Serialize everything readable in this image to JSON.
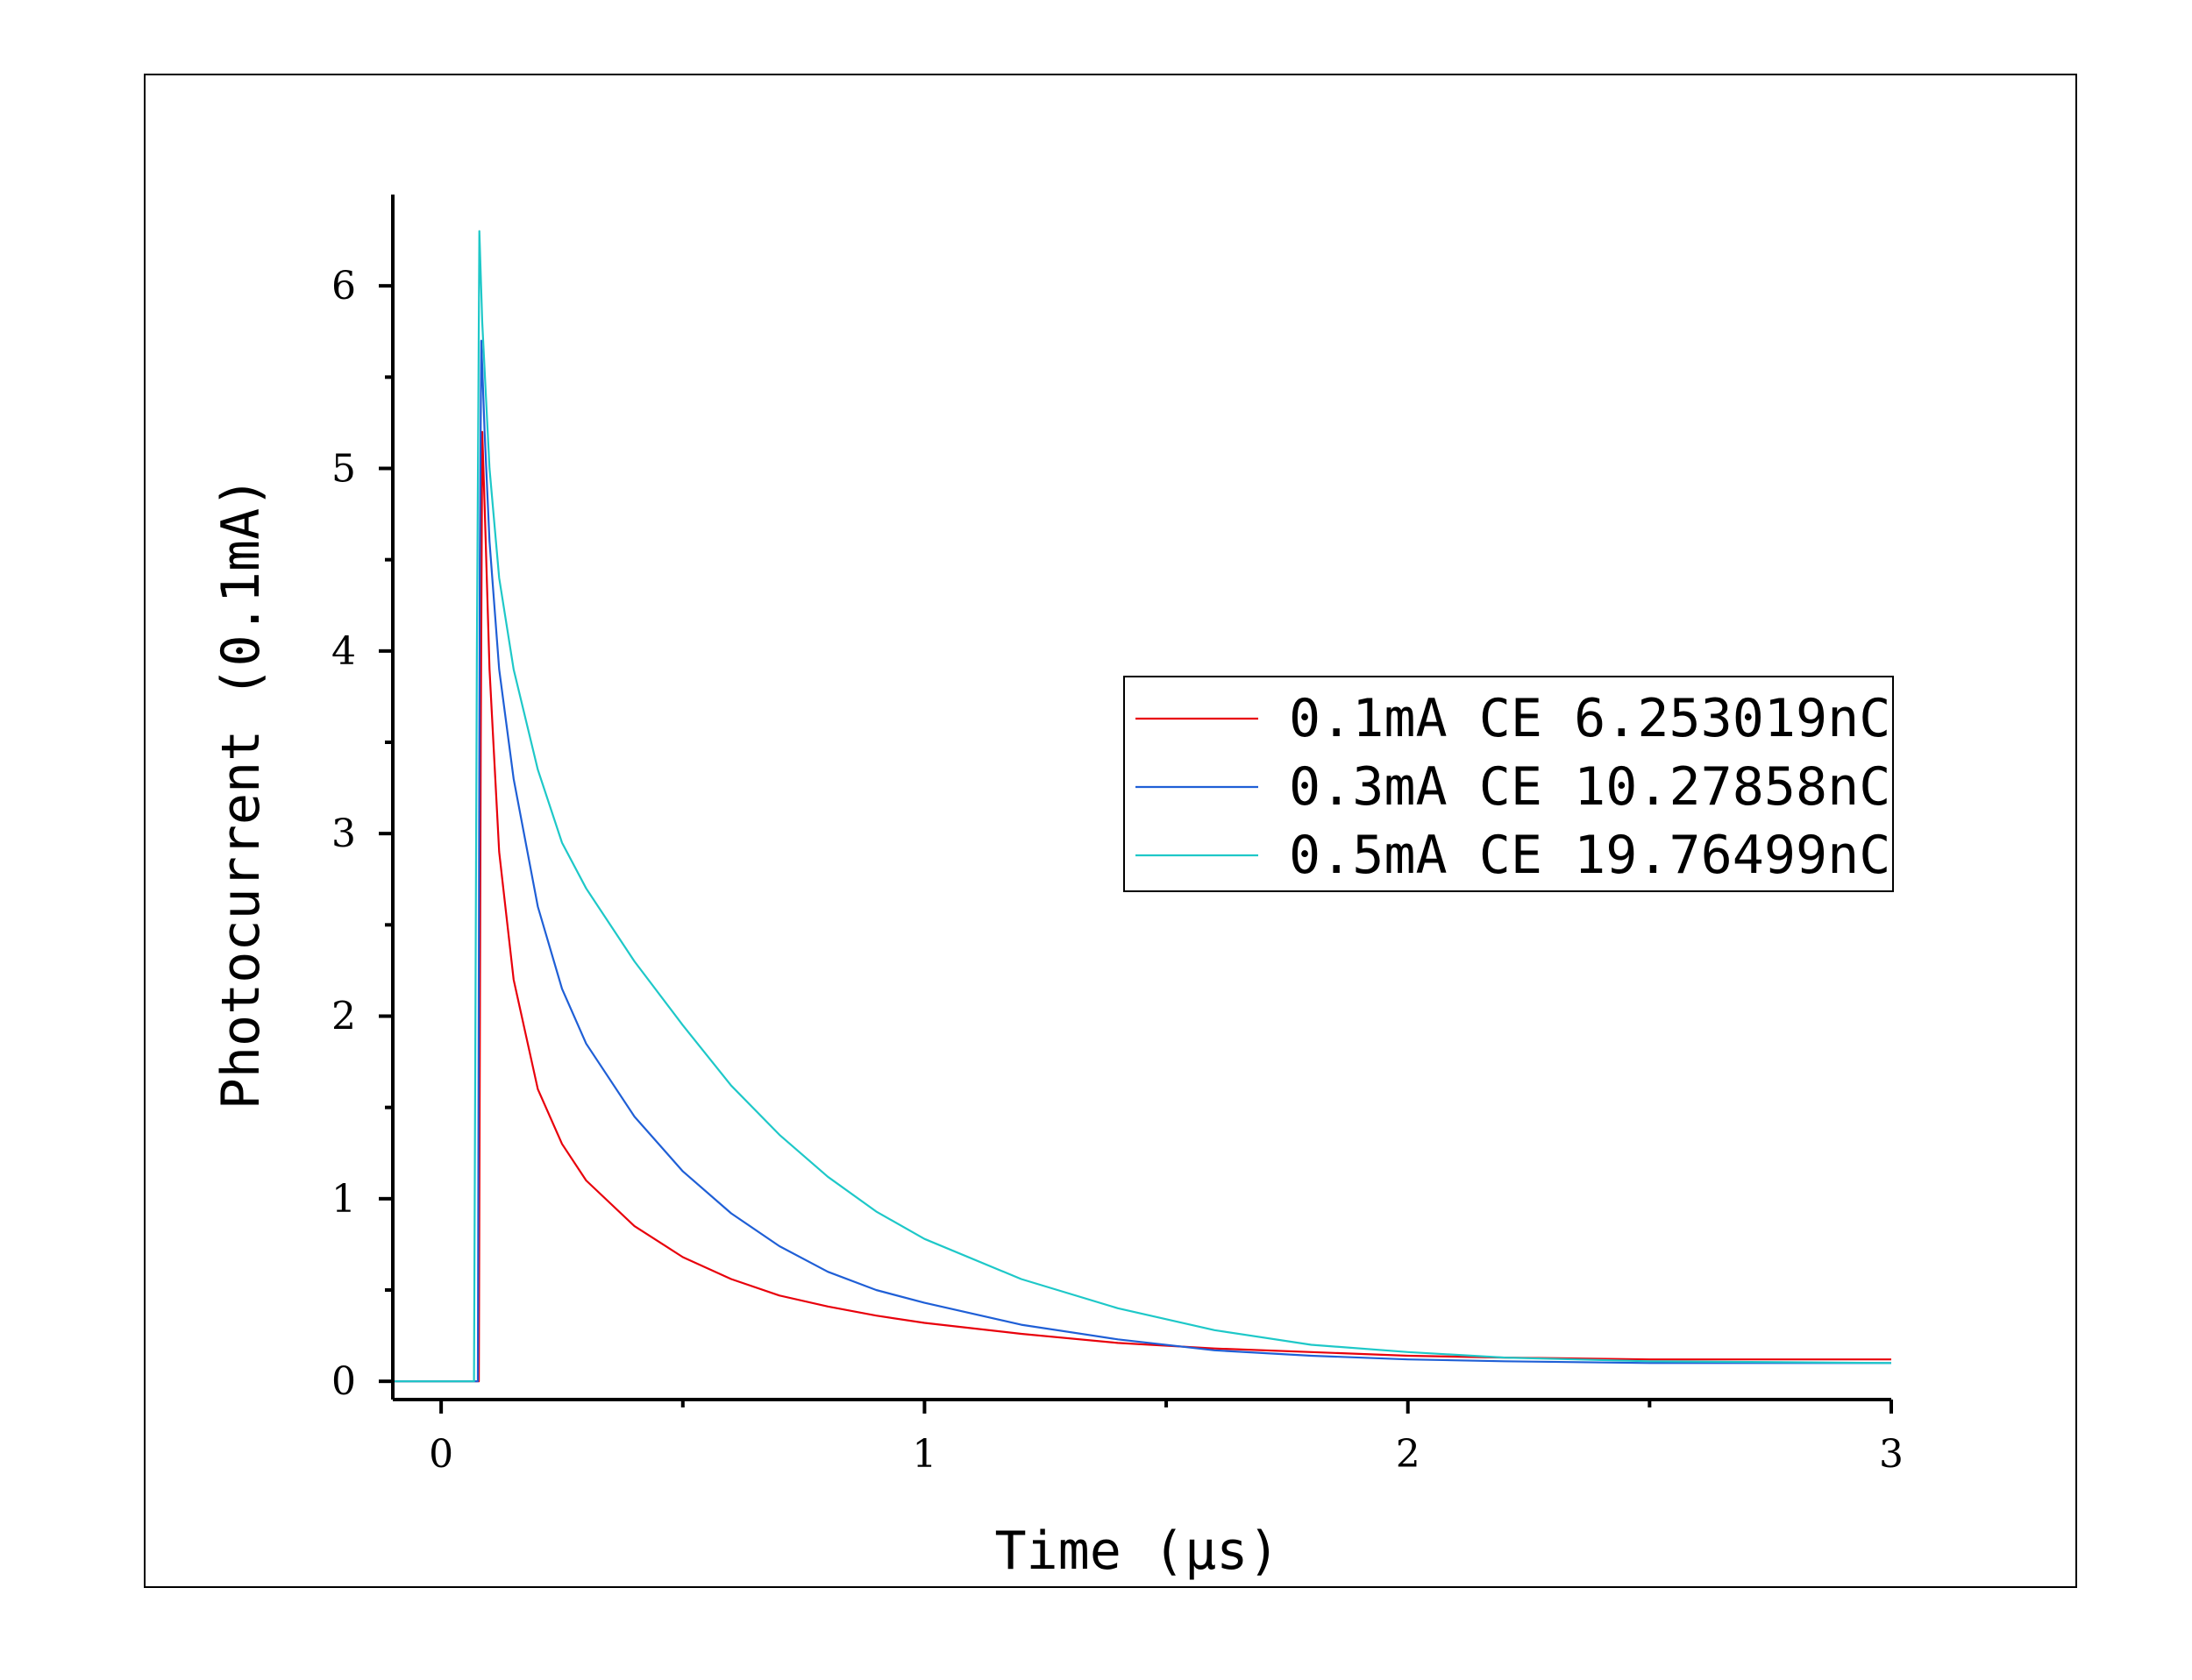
{
  "chart_data": {
    "type": "line",
    "xlabel": "Time (μs)",
    "ylabel": "Photocurrent (0.1mA)",
    "xlim": [
      -0.1,
      3.0
    ],
    "ylim": [
      -0.1,
      6.5
    ],
    "x_ticks": [
      0,
      1,
      2,
      3
    ],
    "x_tick_labels": [
      "0",
      "1",
      "2",
      "3"
    ],
    "y_ticks": [
      0,
      1,
      2,
      3,
      4,
      5,
      6
    ],
    "y_tick_labels": [
      "0",
      "1",
      "2",
      "3",
      "4",
      "5",
      "6"
    ],
    "grid": false,
    "legend_position": "center-right",
    "series": [
      {
        "name": "0.1mA CE 6.253019nC",
        "color": "#e8000b",
        "x": [
          -0.1,
          0.07,
          0.078,
          0.082,
          0.085,
          0.09,
          0.1,
          0.12,
          0.15,
          0.2,
          0.25,
          0.3,
          0.4,
          0.5,
          0.6,
          0.7,
          0.8,
          0.9,
          1.0,
          1.2,
          1.4,
          1.6,
          1.8,
          2.0,
          2.2,
          2.5,
          3.0
        ],
        "y": [
          0,
          0,
          0,
          3.5,
          5.2,
          4.8,
          3.9,
          2.9,
          2.2,
          1.6,
          1.3,
          1.1,
          0.85,
          0.68,
          0.56,
          0.47,
          0.41,
          0.36,
          0.32,
          0.26,
          0.21,
          0.18,
          0.16,
          0.14,
          0.13,
          0.12,
          0.12
        ]
      },
      {
        "name": "0.3mA CE 10.27858nC",
        "color": "#1f5fd6",
        "x": [
          -0.1,
          0.07,
          0.076,
          0.08,
          0.083,
          0.09,
          0.1,
          0.12,
          0.15,
          0.2,
          0.25,
          0.3,
          0.4,
          0.5,
          0.6,
          0.7,
          0.8,
          0.9,
          1.0,
          1.2,
          1.4,
          1.6,
          1.8,
          2.0,
          2.2,
          2.5,
          3.0
        ],
        "y": [
          0,
          0,
          0,
          4.5,
          5.7,
          5.2,
          4.6,
          3.9,
          3.3,
          2.6,
          2.15,
          1.85,
          1.45,
          1.15,
          0.92,
          0.74,
          0.6,
          0.5,
          0.43,
          0.31,
          0.23,
          0.17,
          0.14,
          0.12,
          0.11,
          0.1,
          0.1
        ]
      },
      {
        "name": "0.5mA CE 19.76499nC",
        "color": "#1ec8c8",
        "x": [
          -0.1,
          0.062,
          0.068,
          0.074,
          0.079,
          0.085,
          0.1,
          0.12,
          0.15,
          0.2,
          0.25,
          0.3,
          0.4,
          0.5,
          0.6,
          0.7,
          0.8,
          0.9,
          1.0,
          1.2,
          1.4,
          1.6,
          1.8,
          2.0,
          2.2,
          2.5,
          3.0
        ],
        "y": [
          0,
          0,
          0,
          4.0,
          6.3,
          5.8,
          5.0,
          4.4,
          3.9,
          3.35,
          2.95,
          2.7,
          2.3,
          1.95,
          1.62,
          1.35,
          1.12,
          0.93,
          0.78,
          0.56,
          0.4,
          0.28,
          0.2,
          0.16,
          0.13,
          0.11,
          0.1
        ]
      }
    ]
  }
}
